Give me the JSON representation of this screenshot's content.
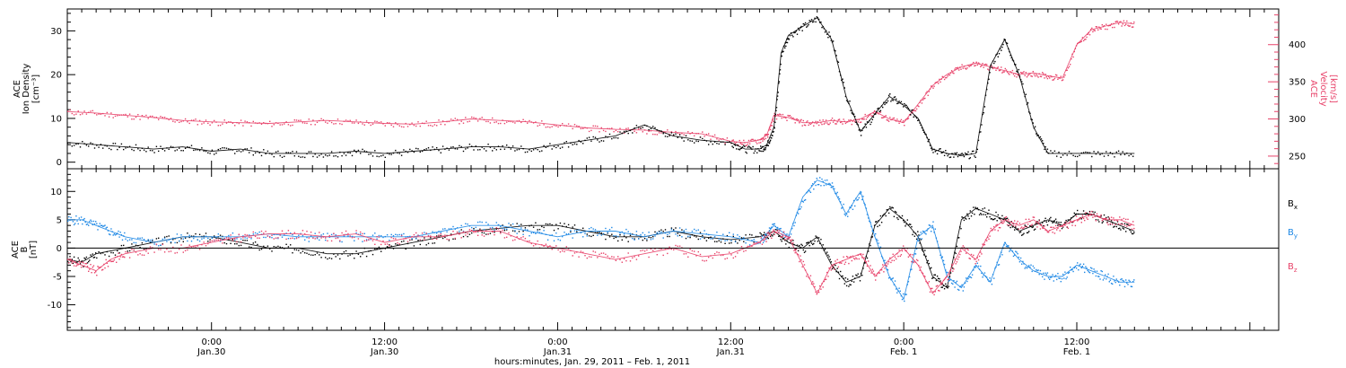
{
  "colors": {
    "density": "#000000",
    "velocity": "#e8436a",
    "bx": "#000000",
    "by": "#1e88e5",
    "bz": "#e8436a",
    "axis": "#000000"
  },
  "chart_data": [
    {
      "type": "scatter",
      "panel": "top",
      "left_axis_label": [
        "ACE",
        "Ion Density",
        "[cm⁻³]"
      ],
      "right_axis_label": [
        "ACE",
        "Velocity",
        "[km/s]"
      ],
      "left_ticks": [
        "0",
        "10",
        "20",
        "30"
      ],
      "right_ticks": [
        "250",
        "300",
        "350",
        "400"
      ],
      "ylim_left": [
        -1.5,
        35
      ],
      "ylim_right": [
        233,
        448
      ],
      "x_unit": "hours since Jan. 29, 2011 00:00",
      "series": [
        {
          "key": "density",
          "side": "left",
          "x": [
            14,
            16,
            18,
            20,
            22,
            24,
            26,
            28,
            30,
            32,
            34,
            36,
            38,
            40,
            42,
            44,
            46,
            48,
            50,
            52,
            54,
            56,
            58,
            60,
            61,
            62,
            62.5,
            63,
            63.5,
            64,
            65,
            66,
            67,
            68,
            69,
            70,
            71,
            72,
            73,
            74,
            75,
            76,
            77,
            78,
            79,
            80,
            81,
            82,
            84,
            86,
            88
          ],
          "y": [
            4.5,
            4,
            3.5,
            3,
            3.5,
            2.5,
            3,
            2,
            2,
            2,
            2.5,
            2,
            2.5,
            3,
            3.5,
            3.5,
            3,
            4,
            5,
            6,
            8.5,
            6,
            5,
            4.5,
            3,
            3,
            4,
            8,
            25,
            29,
            31,
            33,
            28,
            15,
            7,
            11,
            15,
            13,
            10,
            3,
            2,
            1.5,
            2,
            22,
            28,
            20,
            8,
            2,
            2,
            2,
            2
          ]
        },
        {
          "key": "velocity",
          "side": "right",
          "x": [
            14,
            16,
            18,
            20,
            22,
            24,
            26,
            28,
            30,
            32,
            34,
            36,
            38,
            40,
            42,
            44,
            46,
            48,
            50,
            52,
            54,
            56,
            58,
            60,
            61,
            62,
            62.5,
            63,
            64,
            65,
            66,
            67,
            68,
            69,
            70,
            71,
            72,
            73,
            74,
            75,
            76,
            77,
            78,
            79,
            80,
            81,
            82,
            83,
            84,
            85,
            86,
            87,
            88
          ],
          "y": [
            310,
            308,
            305,
            302,
            298,
            296,
            295,
            294,
            296,
            298,
            296,
            294,
            293,
            296,
            300,
            298,
            296,
            292,
            288,
            286,
            285,
            282,
            280,
            270,
            268,
            272,
            278,
            305,
            302,
            295,
            295,
            298,
            296,
            300,
            310,
            300,
            295,
            320,
            345,
            360,
            370,
            375,
            370,
            365,
            360,
            362,
            358,
            355,
            400,
            420,
            425,
            430,
            428
          ]
        }
      ]
    },
    {
      "type": "scatter",
      "panel": "bottom",
      "left_axis_label": [
        "ACE",
        "B",
        "[nT]"
      ],
      "left_ticks": [
        "-10",
        "-5",
        "0",
        "5",
        "10"
      ],
      "ylim_left": [
        -14.5,
        14
      ],
      "zero_line": true,
      "x_unit": "hours since Jan. 29, 2011 00:00",
      "legend": [
        "Bx",
        "By",
        "Bz"
      ],
      "series": [
        {
          "key": "bx",
          "name": "Bx",
          "x": [
            14,
            15,
            16,
            18,
            20,
            22,
            24,
            26,
            28,
            30,
            32,
            34,
            36,
            38,
            40,
            42,
            44,
            46,
            48,
            50,
            52,
            54,
            56,
            58,
            60,
            62,
            63,
            64,
            65,
            66,
            67,
            68,
            69,
            70,
            71,
            72,
            73,
            74,
            75,
            76,
            77,
            78,
            79,
            80,
            81,
            82,
            83,
            84,
            85,
            86,
            87,
            88
          ],
          "y": [
            -2,
            -2.5,
            -1,
            0,
            1,
            2,
            2,
            1,
            0,
            0,
            -1,
            -1,
            0,
            1,
            2,
            3,
            3.5,
            4,
            4,
            3,
            2,
            2,
            3,
            2,
            1.5,
            2,
            3,
            1,
            0,
            2,
            -3,
            -6,
            -5,
            4,
            7,
            5,
            2,
            -5,
            -7,
            5,
            7,
            6,
            5,
            3,
            4,
            5,
            4,
            6,
            6,
            5,
            4,
            3
          ]
        },
        {
          "key": "by",
          "name": "By",
          "x": [
            14,
            15,
            16,
            17,
            18,
            20,
            22,
            24,
            26,
            28,
            30,
            32,
            34,
            36,
            38,
            40,
            42,
            44,
            46,
            48,
            50,
            52,
            54,
            56,
            58,
            60,
            62,
            63,
            64,
            65,
            66,
            67,
            68,
            69,
            70,
            71,
            72,
            73,
            74,
            75,
            76,
            77,
            78,
            79,
            80,
            81,
            82,
            83,
            84,
            85,
            86,
            87,
            88
          ],
          "y": [
            5,
            5,
            4,
            3,
            2,
            1,
            2,
            2,
            2,
            2.5,
            2,
            2,
            2,
            2,
            2,
            3,
            4,
            4,
            3,
            2,
            3,
            3,
            2,
            3,
            2.5,
            2,
            1,
            4,
            2,
            9,
            12,
            11,
            6,
            10,
            2,
            -5,
            -9,
            2,
            4,
            -5,
            -7,
            -3,
            -6,
            1,
            -2,
            -4,
            -5,
            -5,
            -3,
            -4,
            -5,
            -6,
            -6
          ]
        },
        {
          "key": "bz",
          "name": "Bz",
          "x": [
            14,
            15,
            16,
            17,
            18,
            20,
            22,
            24,
            26,
            28,
            30,
            32,
            34,
            36,
            38,
            40,
            42,
            44,
            46,
            48,
            50,
            52,
            54,
            56,
            58,
            60,
            62,
            63,
            64,
            65,
            66,
            67,
            68,
            69,
            70,
            71,
            72,
            73,
            74,
            75,
            76,
            77,
            78,
            79,
            80,
            81,
            82,
            83,
            84,
            85,
            86,
            87,
            88
          ],
          "y": [
            -2,
            -3,
            -4,
            -2,
            -1,
            0,
            0,
            1,
            2,
            2.5,
            2.5,
            2,
            2.5,
            1,
            2,
            2,
            3,
            3,
            1,
            0,
            -1,
            -2,
            -1,
            0,
            -1.5,
            -1,
            1,
            3,
            2,
            -3,
            -8,
            -3,
            -2,
            -1,
            -5,
            -2,
            0,
            -3,
            -8,
            -5,
            0,
            -2,
            3,
            5,
            4,
            5,
            3,
            4,
            5,
            6,
            5,
            5,
            4
          ]
        }
      ]
    }
  ],
  "x_axis": {
    "title": "hours:minutes, Jan. 29, 2011 – Feb. 1, 2011",
    "xlim": [
      14,
      98
    ],
    "tick_labels": [
      {
        "x": 24,
        "time": "0:00",
        "date": "Jan.30"
      },
      {
        "x": 36,
        "time": "12:00",
        "date": "Jan.30"
      },
      {
        "x": 48,
        "time": "0:00",
        "date": "Jan.31"
      },
      {
        "x": 60,
        "time": "12:00",
        "date": "Jan.31"
      },
      {
        "x": 72,
        "time": "0:00",
        "date": "Feb. 1"
      },
      {
        "x": 84,
        "time": "12:00",
        "date": "Feb. 1"
      }
    ]
  }
}
